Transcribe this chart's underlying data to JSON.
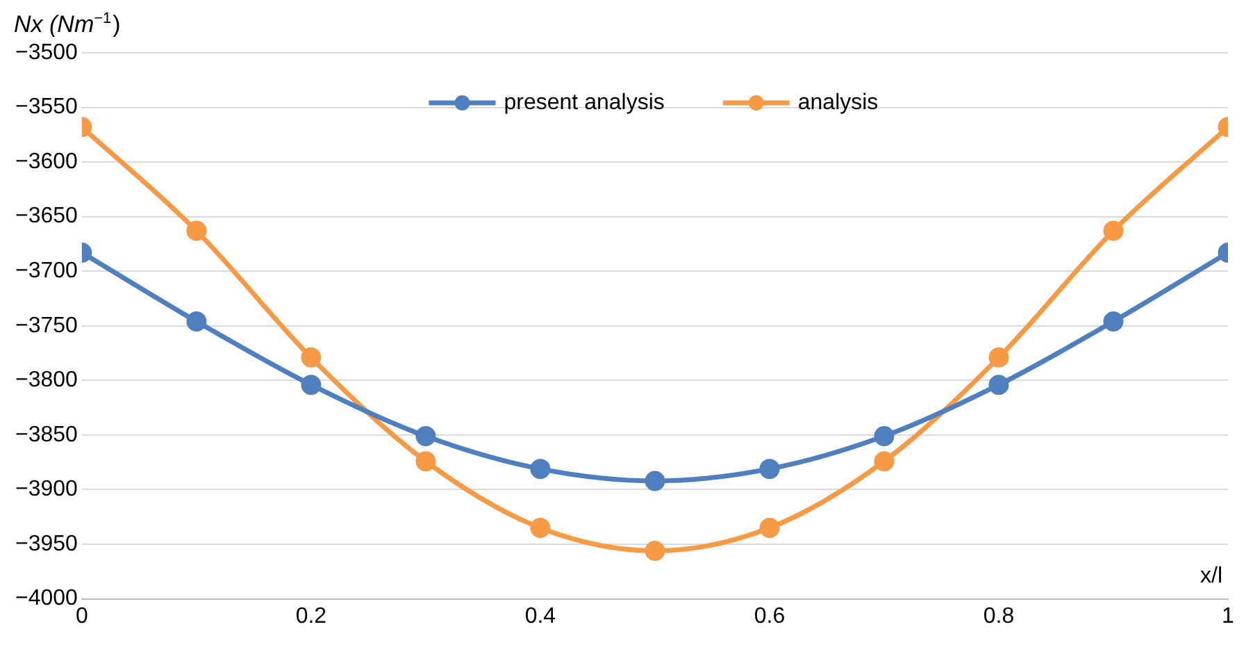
{
  "chart_data": {
    "type": "line",
    "xlabel": "x/l",
    "ylabel": "Nx (Nm$^{−1}$)",
    "x": [
      0,
      0.1,
      0.2,
      0.3,
      0.4,
      0.5,
      0.6,
      0.7,
      0.8,
      0.9,
      1
    ],
    "series": [
      {
        "name": "present analysis",
        "color": "#4f7fbf",
        "values": [
          -3683,
          -3746,
          -3804,
          -3851,
          -3881,
          -3892,
          -3881,
          -3851,
          -3804,
          -3746,
          -3683
        ]
      },
      {
        "name": "analysis",
        "color": "#f79a45",
        "values": [
          -3568,
          -3663,
          -3779,
          -3874,
          -3935,
          -3956,
          -3935,
          -3874,
          -3779,
          -3663,
          -3568
        ]
      }
    ],
    "xlim": [
      0,
      1
    ],
    "xticks": [
      0,
      0.2,
      0.4,
      0.6,
      0.8,
      1
    ],
    "ylim": [
      -4000,
      -3500
    ],
    "yticks": [
      -4000,
      -3950,
      -3900,
      -3850,
      -3800,
      -3750,
      -3700,
      -3650,
      -3600,
      -3550,
      -3500
    ],
    "grid": "y",
    "legend": "top",
    "marker": "circle",
    "line_style": "solid"
  }
}
